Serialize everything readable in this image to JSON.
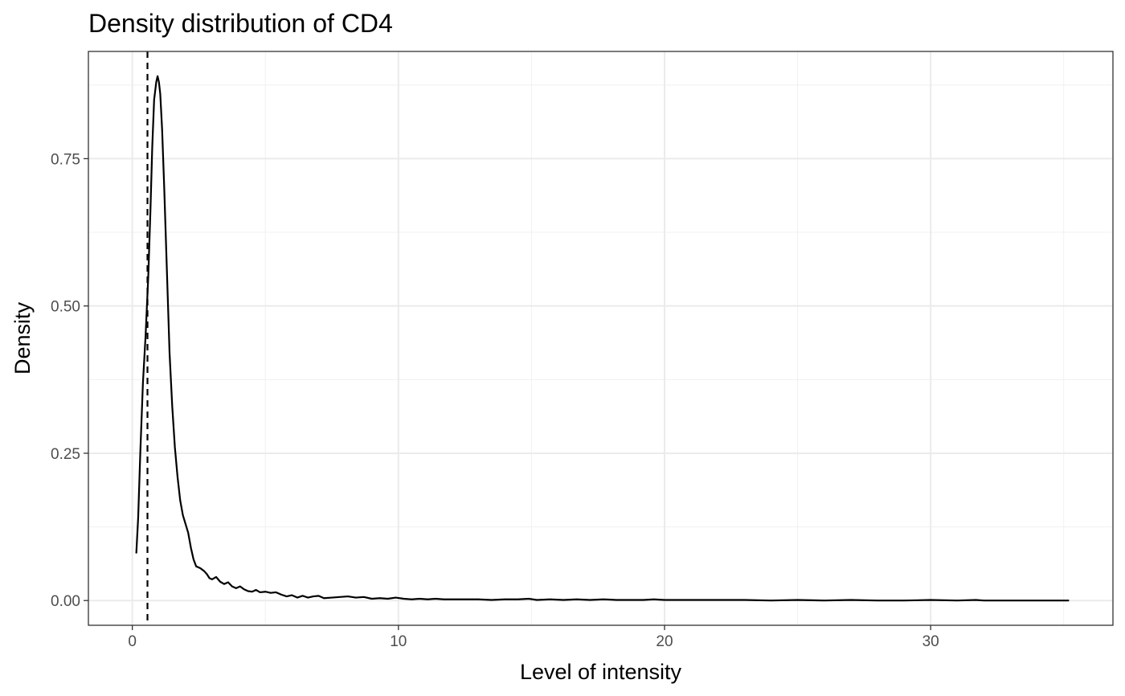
{
  "chart_data": {
    "type": "line",
    "title": "Density distribution of CD4",
    "xlabel": "Level of intensity",
    "ylabel": "Density",
    "xlim": [
      -1.65,
      36.85
    ],
    "ylim": [
      -0.042,
      0.932
    ],
    "x_ticks": [
      0,
      10,
      20,
      30
    ],
    "x_tick_labels": [
      "0",
      "10",
      "20",
      "30"
    ],
    "y_ticks": [
      0.0,
      0.25,
      0.5,
      0.75
    ],
    "y_tick_labels": [
      "0.00",
      "0.25",
      "0.50",
      "0.75"
    ],
    "x_minor_ticks": [
      5,
      15,
      25,
      35
    ],
    "y_minor_ticks": [
      0.125,
      0.375,
      0.625,
      0.875
    ],
    "grid": true,
    "legend": "none",
    "vline": {
      "x": 0.57,
      "style": "dashed"
    },
    "series": [
      {
        "color": "#000000",
        "points": [
          [
            0.15,
            0.08
          ],
          [
            0.22,
            0.14
          ],
          [
            0.3,
            0.25
          ],
          [
            0.4,
            0.37
          ],
          [
            0.5,
            0.45
          ],
          [
            0.6,
            0.55
          ],
          [
            0.68,
            0.66
          ],
          [
            0.75,
            0.77
          ],
          [
            0.82,
            0.85
          ],
          [
            0.9,
            0.88
          ],
          [
            0.95,
            0.89
          ],
          [
            1.0,
            0.88
          ],
          [
            1.05,
            0.86
          ],
          [
            1.12,
            0.8
          ],
          [
            1.2,
            0.7
          ],
          [
            1.3,
            0.56
          ],
          [
            1.4,
            0.42
          ],
          [
            1.5,
            0.33
          ],
          [
            1.6,
            0.26
          ],
          [
            1.7,
            0.21
          ],
          [
            1.8,
            0.17
          ],
          [
            1.9,
            0.145
          ],
          [
            2.0,
            0.13
          ],
          [
            2.1,
            0.115
          ],
          [
            2.2,
            0.09
          ],
          [
            2.3,
            0.07
          ],
          [
            2.4,
            0.058
          ],
          [
            2.55,
            0.055
          ],
          [
            2.7,
            0.05
          ],
          [
            2.8,
            0.045
          ],
          [
            2.9,
            0.038
          ],
          [
            3.0,
            0.036
          ],
          [
            3.15,
            0.04
          ],
          [
            3.3,
            0.032
          ],
          [
            3.45,
            0.028
          ],
          [
            3.6,
            0.031
          ],
          [
            3.75,
            0.024
          ],
          [
            3.9,
            0.021
          ],
          [
            4.05,
            0.024
          ],
          [
            4.2,
            0.019
          ],
          [
            4.35,
            0.016
          ],
          [
            4.5,
            0.015
          ],
          [
            4.65,
            0.018
          ],
          [
            4.8,
            0.014
          ],
          [
            5.0,
            0.015
          ],
          [
            5.2,
            0.013
          ],
          [
            5.4,
            0.014
          ],
          [
            5.6,
            0.01
          ],
          [
            5.8,
            0.007
          ],
          [
            6.0,
            0.009
          ],
          [
            6.2,
            0.005
          ],
          [
            6.4,
            0.008
          ],
          [
            6.6,
            0.005
          ],
          [
            6.8,
            0.007
          ],
          [
            7.0,
            0.008
          ],
          [
            7.2,
            0.004
          ],
          [
            7.5,
            0.005
          ],
          [
            7.8,
            0.006
          ],
          [
            8.1,
            0.007
          ],
          [
            8.4,
            0.005
          ],
          [
            8.7,
            0.006
          ],
          [
            9.0,
            0.003
          ],
          [
            9.3,
            0.004
          ],
          [
            9.6,
            0.003
          ],
          [
            9.9,
            0.005
          ],
          [
            10.2,
            0.003
          ],
          [
            10.5,
            0.002
          ],
          [
            10.8,
            0.003
          ],
          [
            11.1,
            0.002
          ],
          [
            11.4,
            0.003
          ],
          [
            11.7,
            0.002
          ],
          [
            12.0,
            0.002
          ],
          [
            12.5,
            0.002
          ],
          [
            13.0,
            0.002
          ],
          [
            13.5,
            0.001
          ],
          [
            14.0,
            0.002
          ],
          [
            14.5,
            0.002
          ],
          [
            14.9,
            0.003
          ],
          [
            15.2,
            0.001
          ],
          [
            15.7,
            0.002
          ],
          [
            16.2,
            0.001
          ],
          [
            16.7,
            0.002
          ],
          [
            17.2,
            0.001
          ],
          [
            17.7,
            0.002
          ],
          [
            18.2,
            0.001
          ],
          [
            18.7,
            0.001
          ],
          [
            19.2,
            0.001
          ],
          [
            19.6,
            0.002
          ],
          [
            20.0,
            0.001
          ],
          [
            20.5,
            0.001
          ],
          [
            21.0,
            0.001
          ],
          [
            21.5,
            0.001
          ],
          [
            22.0,
            0.001
          ],
          [
            22.5,
            0.001
          ],
          [
            23.0,
            0.001
          ],
          [
            24.0,
            0.0
          ],
          [
            25.0,
            0.001
          ],
          [
            26.0,
            0.0
          ],
          [
            27.0,
            0.001
          ],
          [
            28.0,
            0.0
          ],
          [
            29.0,
            0.0
          ],
          [
            30.0,
            0.001
          ],
          [
            31.0,
            0.0
          ],
          [
            31.7,
            0.001
          ],
          [
            32.0,
            0.0
          ],
          [
            33.0,
            0.0
          ],
          [
            34.0,
            0.0
          ],
          [
            35.0,
            0.0
          ],
          [
            35.2,
            0.0
          ]
        ]
      }
    ]
  }
}
